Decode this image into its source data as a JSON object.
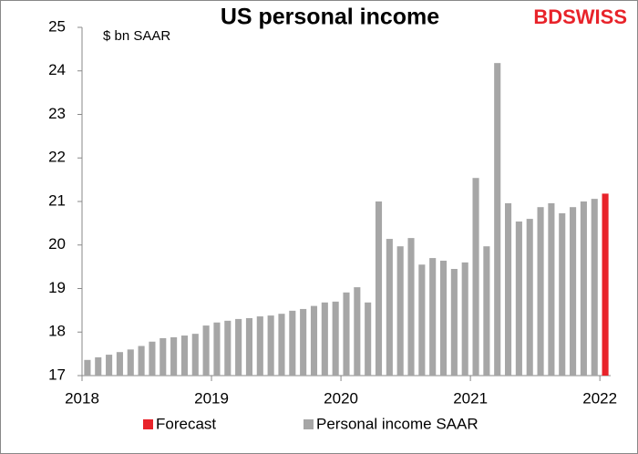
{
  "chart_data": {
    "type": "bar",
    "title": "US personal income",
    "subtitle": "$ bn SAAR",
    "logo": "BDSWISS",
    "categories": [
      "2018",
      null,
      null,
      null,
      null,
      null,
      null,
      null,
      null,
      null,
      null,
      null,
      "2019",
      null,
      null,
      null,
      null,
      null,
      null,
      null,
      null,
      null,
      null,
      null,
      "2020",
      null,
      null,
      null,
      null,
      null,
      null,
      null,
      null,
      null,
      null,
      null,
      "2021",
      null,
      null,
      null,
      null,
      null,
      null,
      null,
      null,
      null,
      null,
      null,
      "2022"
    ],
    "series": [
      {
        "name": "Forecast",
        "color": "#e8232a",
        "values": [
          null,
          null,
          null,
          null,
          null,
          null,
          null,
          null,
          null,
          null,
          null,
          null,
          null,
          null,
          null,
          null,
          null,
          null,
          null,
          null,
          null,
          null,
          null,
          null,
          null,
          null,
          null,
          null,
          null,
          null,
          null,
          null,
          null,
          null,
          null,
          null,
          null,
          null,
          null,
          null,
          null,
          null,
          null,
          null,
          null,
          null,
          null,
          null,
          21.18
        ]
      },
      {
        "name": "Personal income SAAR",
        "color": "#a6a6a6",
        "values": [
          17.36,
          17.42,
          17.48,
          17.54,
          17.6,
          17.68,
          17.78,
          17.86,
          17.88,
          17.92,
          17.96,
          18.15,
          18.22,
          18.26,
          18.3,
          18.32,
          18.36,
          18.38,
          18.42,
          18.49,
          18.53,
          18.6,
          18.68,
          18.7,
          18.91,
          19.03,
          18.68,
          21.0,
          20.14,
          19.97,
          20.16,
          19.55,
          19.7,
          19.64,
          19.45,
          19.6,
          21.54,
          19.97,
          24.18,
          20.96,
          20.54,
          20.6,
          20.87,
          20.96,
          20.73,
          20.87,
          21.0,
          21.06,
          null
        ]
      }
    ],
    "ylim": [
      17,
      25
    ],
    "yticks": [
      17,
      18,
      19,
      20,
      21,
      22,
      23,
      24,
      25
    ],
    "grid": false,
    "legend": "bottom"
  }
}
